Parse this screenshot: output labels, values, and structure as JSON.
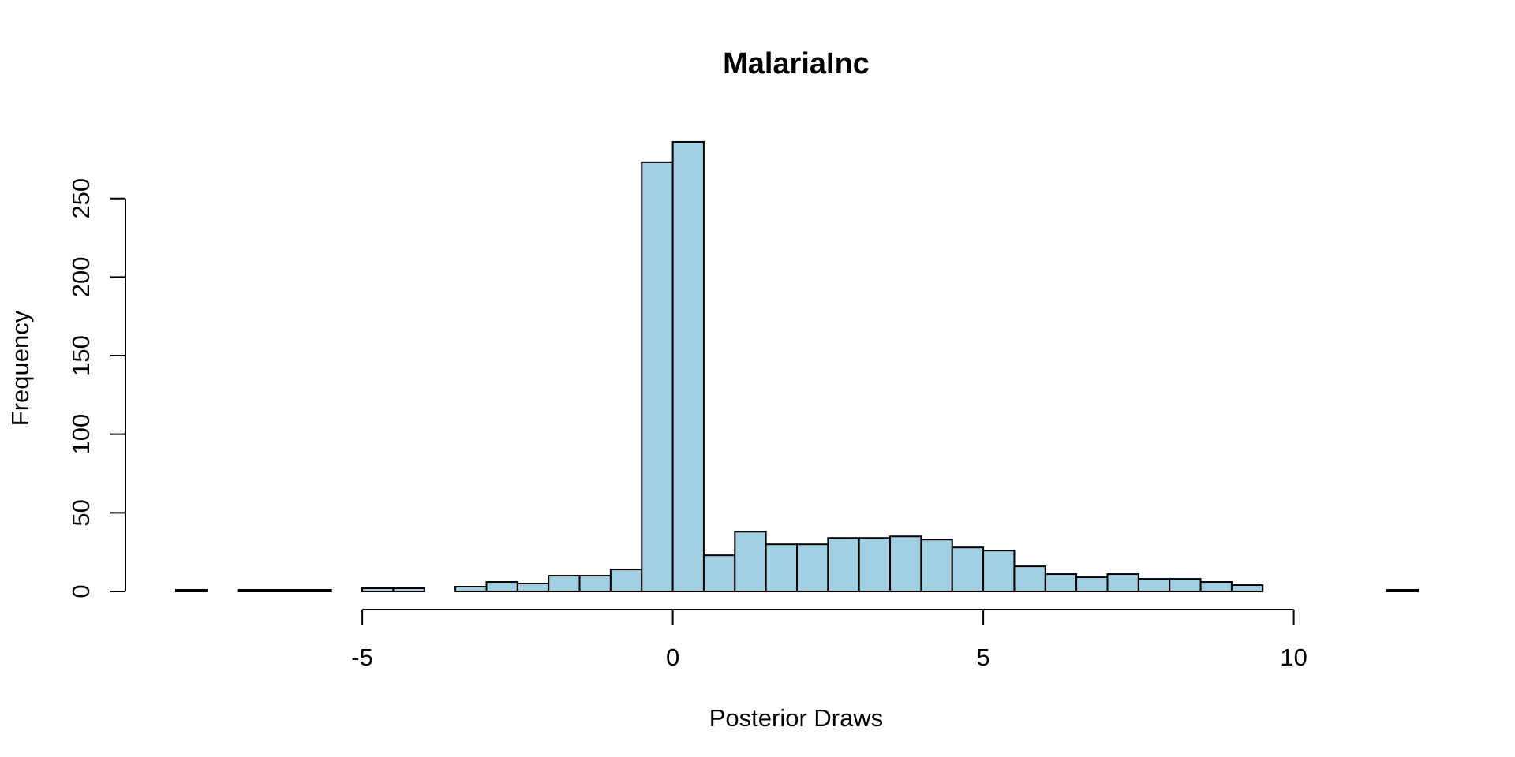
{
  "chart_data": {
    "type": "bar",
    "title": "MalariaInc",
    "xlabel": "Posterior Draws",
    "ylabel": "Frequency",
    "bar_color": "#a2d0e2",
    "bin_width": 0.5,
    "bins": [
      {
        "start": -8.0,
        "count": 1
      },
      {
        "start": -7.5,
        "count": 0
      },
      {
        "start": -7.0,
        "count": 1
      },
      {
        "start": -6.5,
        "count": 1
      },
      {
        "start": -6.0,
        "count": 1
      },
      {
        "start": -5.5,
        "count": 0
      },
      {
        "start": -5.0,
        "count": 2
      },
      {
        "start": -4.5,
        "count": 2
      },
      {
        "start": -4.0,
        "count": 0
      },
      {
        "start": -3.5,
        "count": 3
      },
      {
        "start": -3.0,
        "count": 6
      },
      {
        "start": -2.5,
        "count": 5
      },
      {
        "start": -2.0,
        "count": 10
      },
      {
        "start": -1.5,
        "count": 10
      },
      {
        "start": -1.0,
        "count": 14
      },
      {
        "start": -0.5,
        "count": 273
      },
      {
        "start": 0.0,
        "count": 286
      },
      {
        "start": 0.5,
        "count": 23
      },
      {
        "start": 1.0,
        "count": 38
      },
      {
        "start": 1.5,
        "count": 30
      },
      {
        "start": 2.0,
        "count": 30
      },
      {
        "start": 2.5,
        "count": 34
      },
      {
        "start": 3.0,
        "count": 34
      },
      {
        "start": 3.5,
        "count": 35
      },
      {
        "start": 4.0,
        "count": 33
      },
      {
        "start": 4.5,
        "count": 28
      },
      {
        "start": 5.0,
        "count": 26
      },
      {
        "start": 5.5,
        "count": 16
      },
      {
        "start": 6.0,
        "count": 11
      },
      {
        "start": 6.5,
        "count": 9
      },
      {
        "start": 7.0,
        "count": 11
      },
      {
        "start": 7.5,
        "count": 8
      },
      {
        "start": 8.0,
        "count": 8
      },
      {
        "start": 8.5,
        "count": 6
      },
      {
        "start": 9.0,
        "count": 4
      },
      {
        "start": 9.5,
        "count": 0
      },
      {
        "start": 10.0,
        "count": 0
      },
      {
        "start": 10.5,
        "count": 0
      },
      {
        "start": 11.0,
        "count": 0
      },
      {
        "start": 11.5,
        "count": 1
      }
    ],
    "xticks": [
      -5,
      0,
      5,
      10
    ],
    "xtick_labels": [
      "-5",
      "0",
      "5",
      "10"
    ],
    "yticks": [
      0,
      50,
      100,
      150,
      200,
      250
    ],
    "ytick_labels": [
      "0",
      "50",
      "100",
      "150",
      "200",
      "250"
    ],
    "xlim": [
      -8,
      12
    ],
    "ylim": [
      0,
      286
    ],
    "grid": false,
    "legend": "none"
  }
}
